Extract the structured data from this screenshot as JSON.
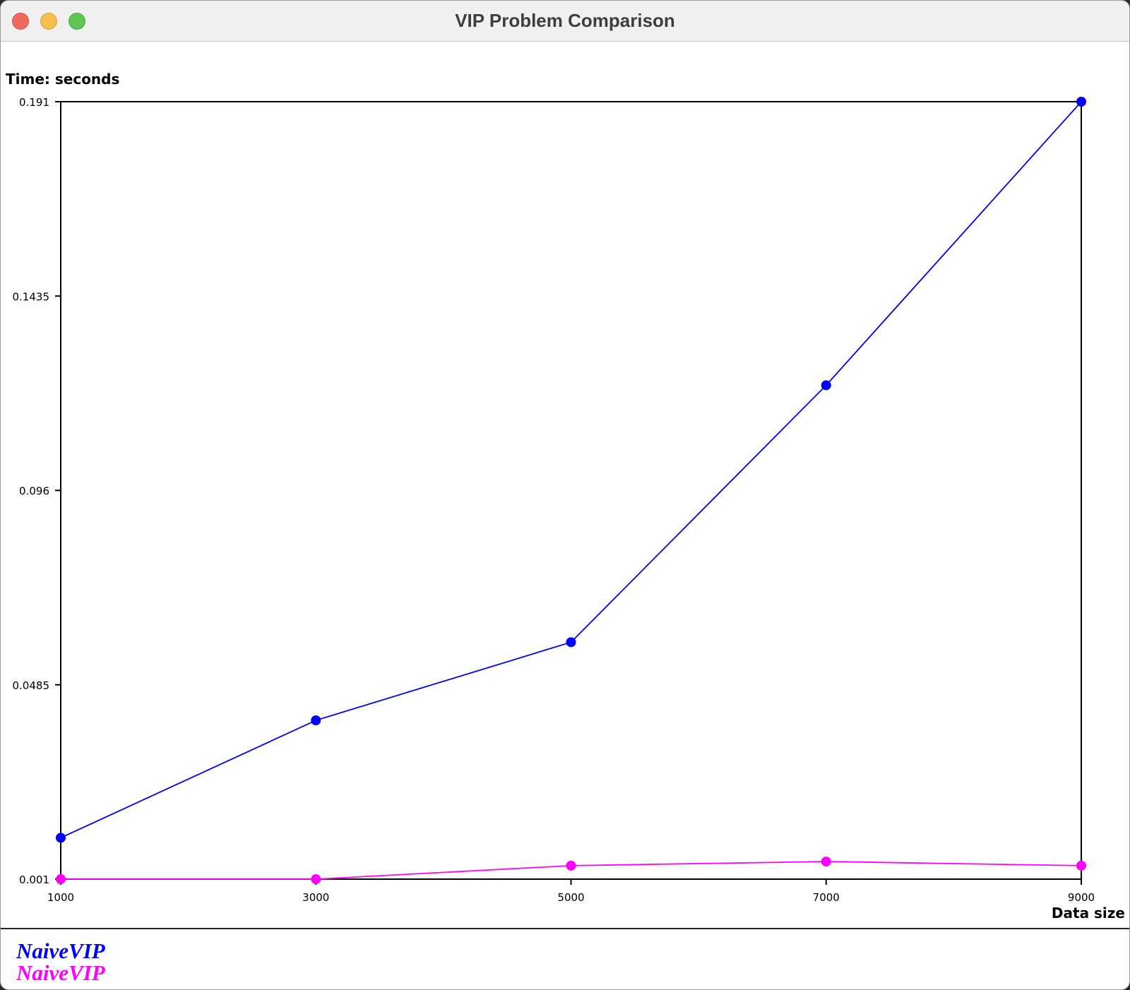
{
  "window": {
    "title": "VIP Problem Comparison"
  },
  "chart_data": {
    "type": "line",
    "ylabel": "Time: seconds",
    "xlabel": "Data size",
    "x": [
      1000,
      3000,
      5000,
      7000,
      9000
    ],
    "xlim": [
      1000,
      9000
    ],
    "ylim": [
      0.001,
      0.191
    ],
    "xticks": [
      "1000",
      "3000",
      "5000",
      "7000",
      "9000"
    ],
    "yticks": [
      "0.191",
      "0.1435",
      "0.096",
      "0.0485",
      "0.001"
    ],
    "ytick_values": [
      0.191,
      0.1435,
      0.096,
      0.0485,
      0.001
    ],
    "grid": false,
    "legend_position": "bottom-left",
    "series": [
      {
        "name": "NaiveVIP",
        "color": "#0000ff",
        "values": [
          0.0111,
          0.0398,
          0.0589,
          0.1217,
          0.191
        ]
      },
      {
        "name": "NaiveVIP",
        "color": "#ff00ff",
        "values": [
          0.001,
          0.001,
          0.0043,
          0.0053,
          0.0043
        ]
      }
    ]
  }
}
